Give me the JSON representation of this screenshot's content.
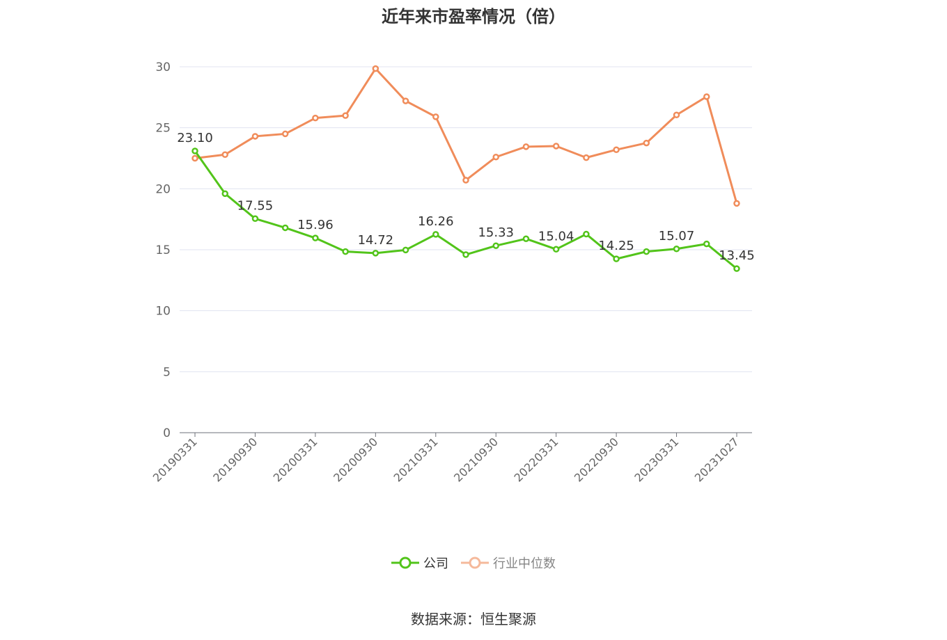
{
  "chart_data": {
    "type": "line",
    "title": "近年来市盈率情况（倍）",
    "x": [
      "20190331",
      "20190630",
      "20190930",
      "20191231",
      "20200331",
      "20200630",
      "20200930",
      "20201231",
      "20210331",
      "20210630",
      "20210930",
      "20211231",
      "20220331",
      "20220630",
      "20220930",
      "20221231",
      "20230331",
      "20230630",
      "20231027"
    ],
    "x_tick_labels": [
      "20190331",
      "20190930",
      "20200331",
      "20200930",
      "20210331",
      "20210930",
      "20220331",
      "20220930",
      "20230331",
      "20231027"
    ],
    "ylim": [
      0,
      30
    ],
    "y_ticks": [
      "0",
      "5",
      "10",
      "15",
      "20",
      "25",
      "30"
    ],
    "grid": true,
    "legend_position": "bottom-center",
    "series": [
      {
        "name": "公司",
        "color": "#52c41a",
        "values": [
          23.1,
          19.6,
          17.55,
          16.8,
          15.96,
          14.85,
          14.72,
          14.98,
          16.26,
          14.6,
          15.33,
          15.9,
          15.04,
          16.28,
          14.25,
          14.85,
          15.07,
          15.48,
          13.45
        ],
        "data_labels": [
          {
            "index": 0,
            "text": "23.10"
          },
          {
            "index": 2,
            "text": "17.55"
          },
          {
            "index": 4,
            "text": "15.96"
          },
          {
            "index": 6,
            "text": "14.72"
          },
          {
            "index": 8,
            "text": "16.26"
          },
          {
            "index": 10,
            "text": "15.33"
          },
          {
            "index": 12,
            "text": "15.04"
          },
          {
            "index": 14,
            "text": "14.25"
          },
          {
            "index": 16,
            "text": "15.07"
          },
          {
            "index": 18,
            "text": "13.45"
          }
        ]
      },
      {
        "name": "行业中位数",
        "color": "#f08c5a",
        "values": [
          22.5,
          22.8,
          24.3,
          24.5,
          25.8,
          26.0,
          29.85,
          27.2,
          25.9,
          20.7,
          22.6,
          23.45,
          23.5,
          22.55,
          23.2,
          23.75,
          26.05,
          27.55,
          18.8
        ]
      }
    ]
  },
  "footer": {
    "source": "数据来源：恒生聚源"
  }
}
